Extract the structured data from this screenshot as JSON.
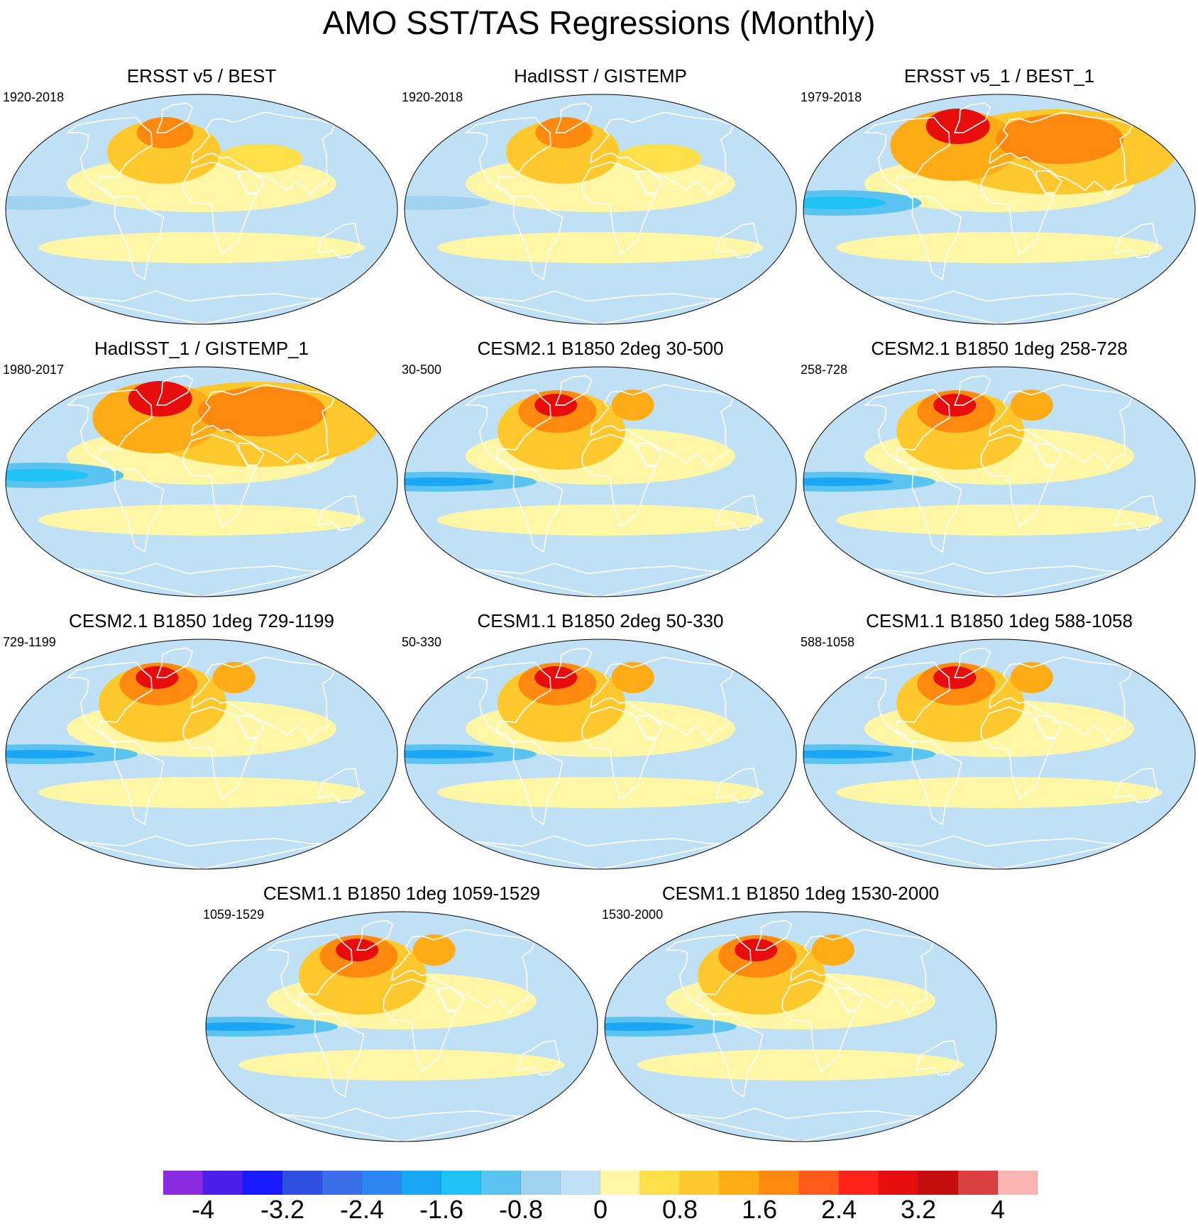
{
  "title": "AMO SST/TAS Regressions (Monthly)",
  "colors": {
    "ocean": "#bfe0f5",
    "neutral_warm": "#fff7a6",
    "coastline": "#ffffff"
  },
  "panels": [
    {
      "title": "ERSST v5 / BEST",
      "period": "1920-2018",
      "pattern": "obs_early"
    },
    {
      "title": "HadISST / GISTEMP",
      "period": "1920-2018",
      "pattern": "obs_early"
    },
    {
      "title": "ERSST v5_1 / BEST_1",
      "period": "1979-2018",
      "pattern": "obs_late"
    },
    {
      "title": "HadISST_1 / GISTEMP_1",
      "period": "1980-2017",
      "pattern": "obs_late"
    },
    {
      "title": "CESM2.1 B1850 2deg 30-500",
      "period": "30-500",
      "pattern": "model"
    },
    {
      "title": "CESM2.1 B1850 1deg 258-728",
      "period": "258-728",
      "pattern": "model"
    },
    {
      "title": "CESM2.1 B1850 1deg 729-1199",
      "period": "729-1199",
      "pattern": "model"
    },
    {
      "title": "CESM1.1 B1850 2deg 50-330",
      "period": "50-330",
      "pattern": "model"
    },
    {
      "title": "CESM1.1 B1850 1deg 588-1058",
      "period": "588-1058",
      "pattern": "model"
    },
    {
      "title": "CESM1.1 B1850 1deg 1059-1529",
      "period": "1059-1529",
      "pattern": "model"
    },
    {
      "title": "CESM1.1 B1850 1deg 1530-2000",
      "period": "1530-2000",
      "pattern": "model"
    }
  ],
  "colorbar": {
    "colors": [
      "#8a2be2",
      "#4b1fe8",
      "#1a1aff",
      "#2f4fe0",
      "#3a6ee8",
      "#2f86f2",
      "#1aa6f5",
      "#1fc3f5",
      "#5ac3f0",
      "#9fd3ef",
      "#bfe0f5",
      "#fff7a6",
      "#ffe04a",
      "#ffc92e",
      "#ffac17",
      "#ff8a0f",
      "#ff5a1a",
      "#ff2418",
      "#e80d0d",
      "#c40d0d",
      "#d94040",
      "#ffb3b3"
    ],
    "tick_labels": [
      "-4",
      "-3.2",
      "-2.4",
      "-1.6",
      "-0.8",
      "0",
      "0.8",
      "1.6",
      "2.4",
      "3.2",
      "4"
    ],
    "tick_values": [
      -4,
      -3.2,
      -2.4,
      -1.6,
      -0.8,
      0,
      0.8,
      1.6,
      2.4,
      3.2,
      4
    ],
    "min": -4.4,
    "max": 4.4
  }
}
